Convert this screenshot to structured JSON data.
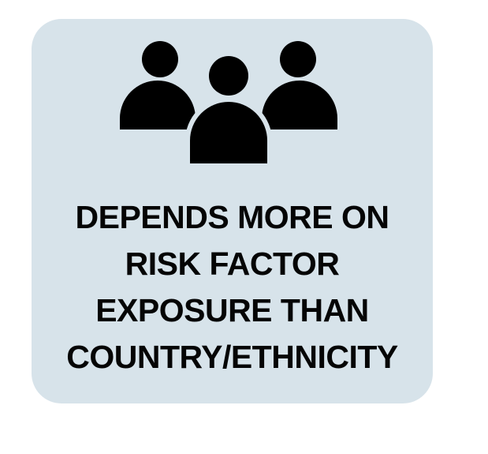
{
  "card": {
    "background": "#d7e3ea",
    "icon": "people-group-icon",
    "lines": [
      "DEPENDS MORE ON",
      "RISK FACTOR",
      "EXPOSURE THAN",
      "COUNTRY/ETHNICITY"
    ]
  }
}
